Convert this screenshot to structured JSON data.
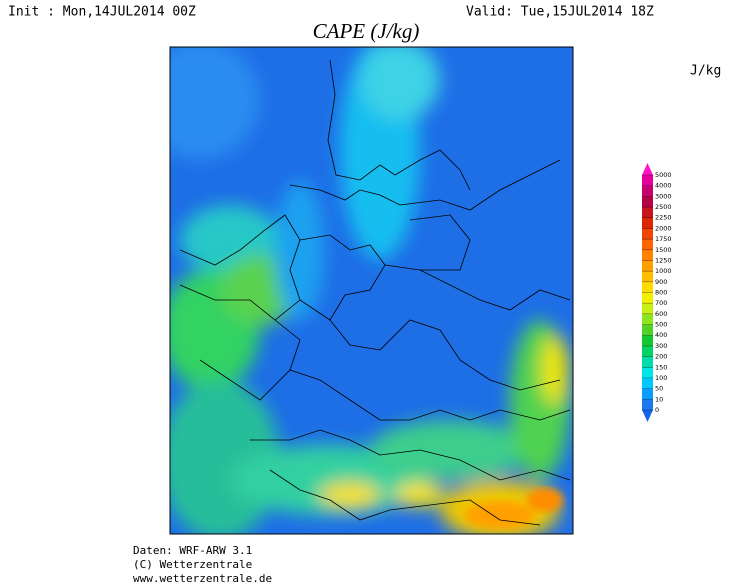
{
  "header": {
    "init": "Init : Mon,14JUL2014 00Z",
    "valid": "Valid: Tue,15JUL2014 18Z"
  },
  "map": {
    "title": "CAPE (J/kg)"
  },
  "colorbar": {
    "unit": "J/kg",
    "levels": [
      0,
      10,
      50,
      100,
      150,
      200,
      300,
      400,
      500,
      600,
      700,
      800,
      900,
      1000,
      1250,
      1500,
      1750,
      2000,
      2250,
      2500,
      3000,
      4000,
      5000
    ],
    "colors": [
      "#1e78f0",
      "#0a9cff",
      "#00c8ff",
      "#00e6e6",
      "#00dcaa",
      "#00d264",
      "#14c832",
      "#50d228",
      "#8ce61e",
      "#c8f014",
      "#f0f000",
      "#ffdc00",
      "#ffbe00",
      "#ffa000",
      "#ff8200",
      "#ff6400",
      "#f04600",
      "#dc2800",
      "#c8141e",
      "#b40046",
      "#c8006e",
      "#e6009b"
    ],
    "under_color": "#1464e6",
    "over_color": "#ff14c8"
  },
  "footer": {
    "lines": [
      "Daten: WRF-ARW 3.1",
      "(C) Wetterzentrale",
      "www.wetterzentrale.de"
    ]
  }
}
